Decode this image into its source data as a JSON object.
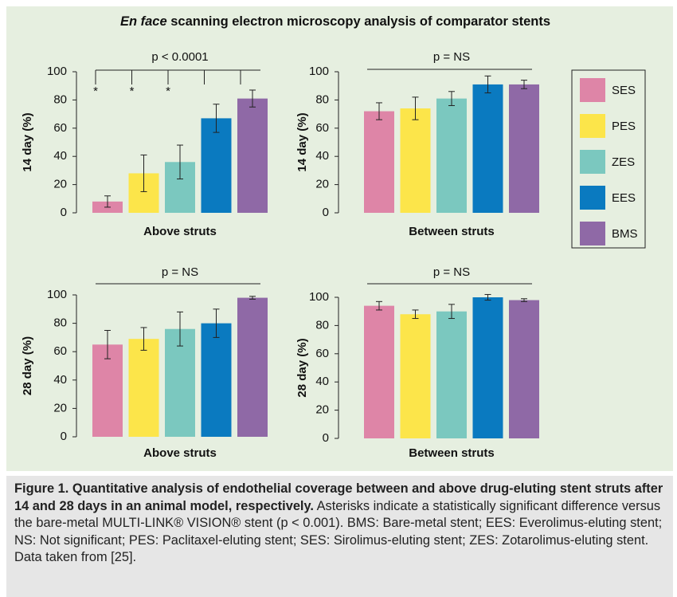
{
  "title_italic": "En face",
  "title": "scanning electron microscopy analysis of comparator stents",
  "legend": [
    {
      "name": "SES",
      "color": "#de85a7"
    },
    {
      "name": "PES",
      "color": "#fce54a"
    },
    {
      "name": "ZES",
      "color": "#7bc8bf"
    },
    {
      "name": "EES",
      "color": "#0a7ac0"
    },
    {
      "name": "BMS",
      "color": "#8f69a6"
    }
  ],
  "chart_data": [
    {
      "type": "bar",
      "y_label": "14 day (%)",
      "x_label": "Above struts",
      "annotation": "p < 0.0001",
      "values": [
        8,
        28,
        36,
        67,
        81
      ],
      "errors": [
        4,
        13,
        12,
        10,
        6
      ],
      "markers": [
        "*",
        "*",
        "*"
      ],
      "ylim": [
        0,
        100
      ],
      "yticks": [
        0,
        20,
        40,
        60,
        80,
        100
      ]
    },
    {
      "type": "bar",
      "y_label": "14 day (%)",
      "x_label": "Between struts",
      "annotation": "p = NS",
      "values": [
        72,
        74,
        81,
        91,
        91
      ],
      "errors": [
        6,
        8,
        5,
        6,
        3
      ],
      "ylim": [
        0,
        100
      ],
      "yticks": [
        0,
        20,
        40,
        60,
        80,
        100
      ]
    },
    {
      "type": "bar",
      "y_label": "28 day (%)",
      "x_label": "Above struts",
      "annotation": "p = NS",
      "values": [
        65,
        69,
        76,
        80,
        98
      ],
      "errors": [
        10,
        8,
        12,
        10,
        1
      ],
      "ylim": [
        0,
        100
      ],
      "yticks": [
        0,
        20,
        40,
        60,
        80,
        100
      ]
    },
    {
      "type": "bar",
      "y_label": "28 day (%)",
      "x_label": "Between struts",
      "annotation": "p = NS",
      "values": [
        94,
        88,
        90,
        100,
        98
      ],
      "errors": [
        3,
        3,
        5,
        2,
        1
      ],
      "ylim": [
        0,
        100
      ],
      "yticks": [
        0,
        20,
        40,
        60,
        80,
        100
      ]
    }
  ],
  "caption": {
    "bold": "Figure 1. Quantitative analysis of endothelial coverage between and above drug-eluting stent struts after 14 and 28 days in an animal model, respectively.",
    "text": "Asterisks indicate a statistically significant difference versus the bare-metal MULTI-LINK® VISION® stent (p < 0.001). BMS: Bare-metal stent; EES: Everolimus-eluting stent; NS: Not significant; PES: Paclitaxel-eluting stent; SES: Sirolimus-eluting stent; ZES: Zotarolimus-eluting stent.",
    "source": "Data taken from [25]."
  }
}
